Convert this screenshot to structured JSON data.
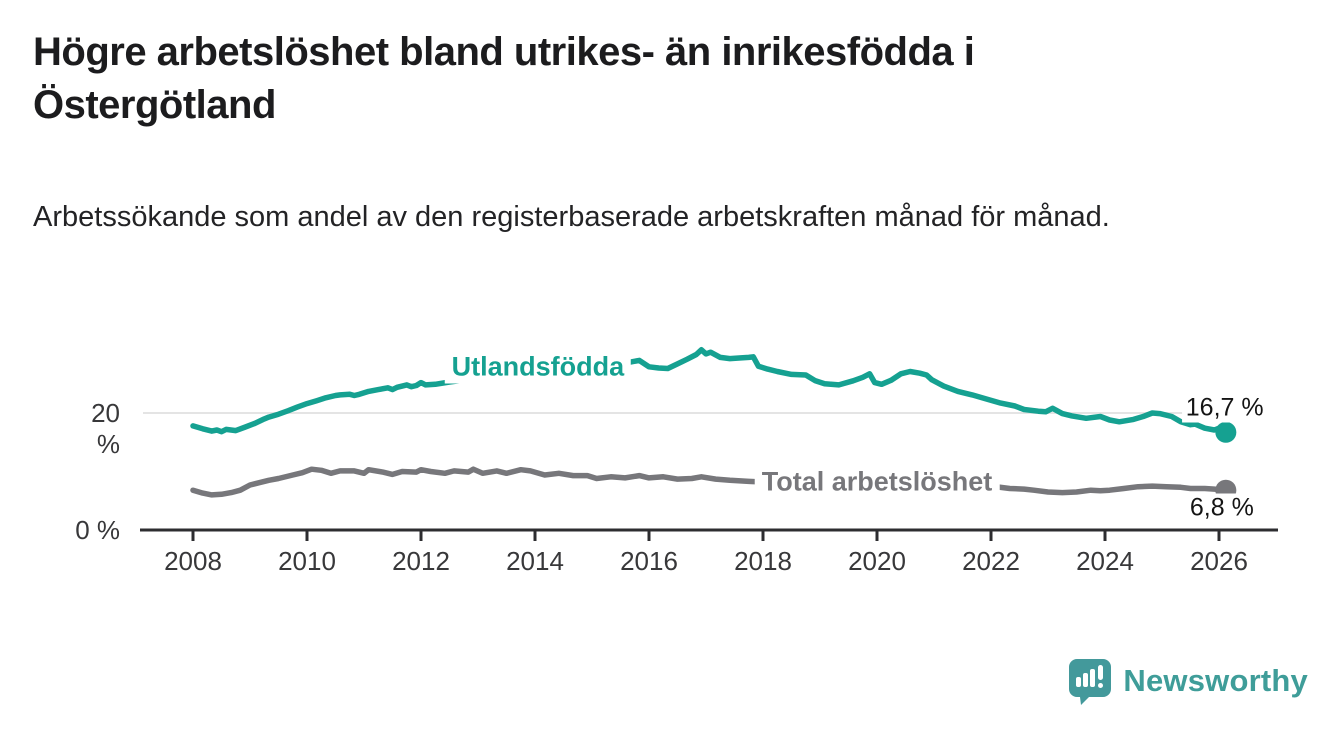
{
  "header": {
    "title": "Högre arbetslöshet bland utrikes- än inrikesfödda i Östergötland",
    "subtitle": "Arbetssökande som andel av den registerbaserade arbetskraften månad för månad."
  },
  "chart_data": {
    "type": "line",
    "title": "Högre arbetslöshet bland utrikes- än inrikesfödda i Östergötland",
    "subtitle": "Arbetssökande som andel av den registerbaserade arbetskraften månad för månad.",
    "unit": "%",
    "x_axis": {
      "ticks": [
        2008,
        2010,
        2012,
        2014,
        2016,
        2018,
        2020,
        2022,
        2024,
        2026
      ],
      "range": [
        2007.1,
        2027.0
      ]
    },
    "y_axis": {
      "ticks": [
        {
          "value": 0,
          "label": "0 %",
          "grid": false
        },
        {
          "value": 20,
          "label": "20 %",
          "grid": true
        }
      ],
      "range": [
        0,
        34
      ]
    },
    "grid": "horizontal-only",
    "legend_position": "inline-labels",
    "series": [
      {
        "name": "Utlandsfödda",
        "color": "#15a191",
        "end_label": "16,7 %",
        "end_value": 16.7,
        "label_anchor": {
          "x": 2014.05,
          "y": 27.9
        },
        "end_label_anchor": {
          "x": 2026.1,
          "y": 20.8
        },
        "points": [
          [
            2008.0,
            17.8
          ],
          [
            2008.17,
            17.3
          ],
          [
            2008.33,
            16.9
          ],
          [
            2008.42,
            17.1
          ],
          [
            2008.5,
            16.8
          ],
          [
            2008.58,
            17.2
          ],
          [
            2008.75,
            17.0
          ],
          [
            2008.92,
            17.6
          ],
          [
            2009.08,
            18.2
          ],
          [
            2009.25,
            19.0
          ],
          [
            2009.33,
            19.3
          ],
          [
            2009.5,
            19.8
          ],
          [
            2009.67,
            20.4
          ],
          [
            2009.83,
            21.0
          ],
          [
            2010.0,
            21.6
          ],
          [
            2010.17,
            22.1
          ],
          [
            2010.33,
            22.6
          ],
          [
            2010.5,
            23.0
          ],
          [
            2010.58,
            23.1
          ],
          [
            2010.75,
            23.2
          ],
          [
            2010.83,
            23.0
          ],
          [
            2010.92,
            23.2
          ],
          [
            2011.08,
            23.7
          ],
          [
            2011.25,
            24.0
          ],
          [
            2011.42,
            24.3
          ],
          [
            2011.5,
            24.0
          ],
          [
            2011.58,
            24.4
          ],
          [
            2011.75,
            24.8
          ],
          [
            2011.83,
            24.5
          ],
          [
            2011.92,
            24.7
          ],
          [
            2012.0,
            25.2
          ],
          [
            2012.08,
            24.8
          ],
          [
            2012.25,
            24.9
          ],
          [
            2012.5,
            25.3
          ],
          [
            2012.75,
            25.6
          ],
          [
            2013.0,
            25.9
          ],
          [
            2013.5,
            26.3
          ],
          [
            2014.0,
            26.9
          ],
          [
            2014.5,
            27.4
          ],
          [
            2015.0,
            27.9
          ],
          [
            2015.5,
            28.4
          ],
          [
            2015.83,
            29.0
          ],
          [
            2016.0,
            27.9
          ],
          [
            2016.17,
            27.7
          ],
          [
            2016.33,
            27.6
          ],
          [
            2016.5,
            28.4
          ],
          [
            2016.67,
            29.2
          ],
          [
            2016.83,
            30.0
          ],
          [
            2016.92,
            30.8
          ],
          [
            2017.0,
            30.1
          ],
          [
            2017.08,
            30.4
          ],
          [
            2017.25,
            29.5
          ],
          [
            2017.42,
            29.3
          ],
          [
            2017.58,
            29.4
          ],
          [
            2017.75,
            29.5
          ],
          [
            2017.83,
            29.6
          ],
          [
            2017.92,
            28.0
          ],
          [
            2018.08,
            27.5
          ],
          [
            2018.25,
            27.1
          ],
          [
            2018.5,
            26.6
          ],
          [
            2018.75,
            26.5
          ],
          [
            2018.92,
            25.5
          ],
          [
            2019.08,
            25.0
          ],
          [
            2019.33,
            24.8
          ],
          [
            2019.58,
            25.5
          ],
          [
            2019.75,
            26.1
          ],
          [
            2019.87,
            26.7
          ],
          [
            2019.96,
            25.2
          ],
          [
            2020.08,
            24.9
          ],
          [
            2020.25,
            25.6
          ],
          [
            2020.42,
            26.7
          ],
          [
            2020.58,
            27.1
          ],
          [
            2020.75,
            26.8
          ],
          [
            2020.87,
            26.5
          ],
          [
            2020.96,
            25.7
          ],
          [
            2021.17,
            24.6
          ],
          [
            2021.42,
            23.7
          ],
          [
            2021.67,
            23.1
          ],
          [
            2021.92,
            22.4
          ],
          [
            2022.17,
            21.7
          ],
          [
            2022.42,
            21.2
          ],
          [
            2022.58,
            20.6
          ],
          [
            2022.83,
            20.3
          ],
          [
            2022.96,
            20.2
          ],
          [
            2023.08,
            20.8
          ],
          [
            2023.25,
            19.9
          ],
          [
            2023.42,
            19.5
          ],
          [
            2023.67,
            19.1
          ],
          [
            2023.92,
            19.4
          ],
          [
            2024.08,
            18.8
          ],
          [
            2024.25,
            18.5
          ],
          [
            2024.5,
            18.9
          ],
          [
            2024.67,
            19.4
          ],
          [
            2024.83,
            20.0
          ],
          [
            2024.96,
            19.9
          ],
          [
            2025.17,
            19.4
          ],
          [
            2025.33,
            18.5
          ],
          [
            2025.5,
            18.0
          ],
          [
            2025.58,
            18.1
          ],
          [
            2025.75,
            17.4
          ],
          [
            2025.92,
            17.1
          ],
          [
            2026.0,
            17.4
          ],
          [
            2026.12,
            16.7
          ]
        ]
      },
      {
        "name": "Total arbetslöshet",
        "color": "#77777b",
        "end_label": "6,8 %",
        "end_value": 6.8,
        "label_anchor": {
          "x": 2020.0,
          "y": 8.2
        },
        "end_label_anchor": {
          "x": 2026.05,
          "y": 3.7
        },
        "points": [
          [
            2008.0,
            6.8
          ],
          [
            2008.17,
            6.3
          ],
          [
            2008.33,
            6.0
          ],
          [
            2008.5,
            6.1
          ],
          [
            2008.67,
            6.4
          ],
          [
            2008.83,
            6.8
          ],
          [
            2009.0,
            7.7
          ],
          [
            2009.17,
            8.1
          ],
          [
            2009.33,
            8.5
          ],
          [
            2009.5,
            8.8
          ],
          [
            2009.75,
            9.4
          ],
          [
            2009.92,
            9.8
          ],
          [
            2010.08,
            10.4
          ],
          [
            2010.25,
            10.2
          ],
          [
            2010.42,
            9.7
          ],
          [
            2010.58,
            10.1
          ],
          [
            2010.83,
            10.1
          ],
          [
            2011.0,
            9.7
          ],
          [
            2011.08,
            10.3
          ],
          [
            2011.33,
            9.9
          ],
          [
            2011.5,
            9.5
          ],
          [
            2011.67,
            10.0
          ],
          [
            2011.92,
            9.9
          ],
          [
            2012.0,
            10.3
          ],
          [
            2012.17,
            10.0
          ],
          [
            2012.42,
            9.7
          ],
          [
            2012.58,
            10.1
          ],
          [
            2012.83,
            9.9
          ],
          [
            2012.92,
            10.4
          ],
          [
            2013.08,
            9.7
          ],
          [
            2013.33,
            10.1
          ],
          [
            2013.5,
            9.7
          ],
          [
            2013.75,
            10.3
          ],
          [
            2013.92,
            10.1
          ],
          [
            2014.17,
            9.4
          ],
          [
            2014.42,
            9.7
          ],
          [
            2014.67,
            9.3
          ],
          [
            2014.92,
            9.3
          ],
          [
            2015.08,
            8.8
          ],
          [
            2015.33,
            9.1
          ],
          [
            2015.58,
            8.9
          ],
          [
            2015.83,
            9.3
          ],
          [
            2016.0,
            8.9
          ],
          [
            2016.25,
            9.1
          ],
          [
            2016.5,
            8.7
          ],
          [
            2016.75,
            8.8
          ],
          [
            2016.92,
            9.1
          ],
          [
            2017.17,
            8.7
          ],
          [
            2017.42,
            8.5
          ],
          [
            2017.75,
            8.3
          ],
          [
            2018.0,
            8.2
          ],
          [
            2018.5,
            8.0
          ],
          [
            2019.0,
            7.8
          ],
          [
            2019.5,
            7.7
          ],
          [
            2020.0,
            8.0
          ],
          [
            2020.42,
            9.0
          ],
          [
            2020.75,
            8.9
          ],
          [
            2021.0,
            8.6
          ],
          [
            2021.5,
            8.1
          ],
          [
            2022.0,
            7.5
          ],
          [
            2022.33,
            7.1
          ],
          [
            2022.58,
            7.0
          ],
          [
            2022.75,
            6.8
          ],
          [
            2023.0,
            6.5
          ],
          [
            2023.25,
            6.4
          ],
          [
            2023.5,
            6.5
          ],
          [
            2023.75,
            6.8
          ],
          [
            2023.92,
            6.7
          ],
          [
            2024.08,
            6.8
          ],
          [
            2024.33,
            7.1
          ],
          [
            2024.58,
            7.4
          ],
          [
            2024.83,
            7.5
          ],
          [
            2025.08,
            7.4
          ],
          [
            2025.33,
            7.3
          ],
          [
            2025.5,
            7.1
          ],
          [
            2025.75,
            7.1
          ],
          [
            2025.92,
            7.0
          ],
          [
            2026.12,
            6.8
          ]
        ]
      }
    ]
  },
  "palette": {
    "accent_teal": "#15a191",
    "series_gray": "#77777b",
    "axis_line": "#2d2d30",
    "grid_line": "#e4e4e4",
    "axis_text": "#38383a",
    "logo_teal": "#43999b"
  },
  "footer": {
    "brand": "Newsworthy"
  }
}
